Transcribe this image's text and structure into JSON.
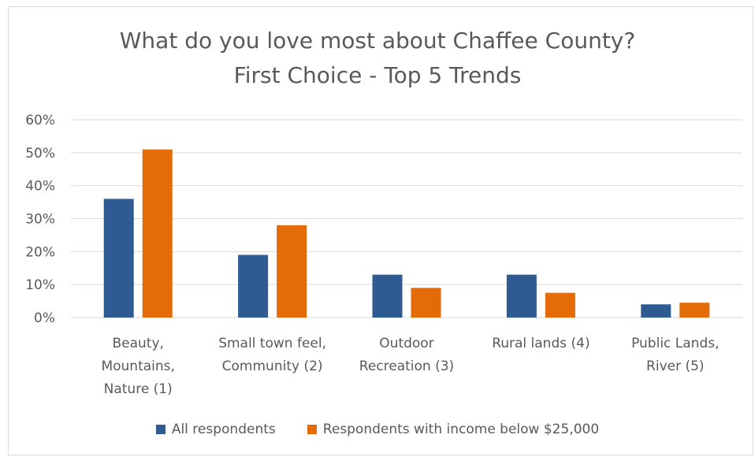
{
  "chart_data": {
    "type": "bar",
    "title": "What do you love most about Chaffee County?",
    "subtitle": "First Choice - Top 5 Trends",
    "categories": [
      [
        "Beauty,",
        "Mountains,",
        "Nature (1)"
      ],
      [
        "Small town feel,",
        "Community (2)"
      ],
      [
        "Outdoor",
        "Recreation (3)"
      ],
      [
        "Rural lands (4)"
      ],
      [
        "Public Lands,",
        "River (5)"
      ]
    ],
    "series": [
      {
        "name": "All respondents",
        "color": "#2f5b93",
        "values": [
          36,
          19,
          13,
          13,
          4
        ]
      },
      {
        "name": "Respondents with income below $25,000",
        "color": "#e36c09",
        "values": [
          51,
          28,
          9,
          7.5,
          4.5
        ]
      }
    ],
    "ylim": [
      0,
      60
    ],
    "yticks": [
      "0%",
      "10%",
      "20%",
      "30%",
      "40%",
      "50%",
      "60%"
    ],
    "grid": true,
    "legend_position": "bottom"
  }
}
